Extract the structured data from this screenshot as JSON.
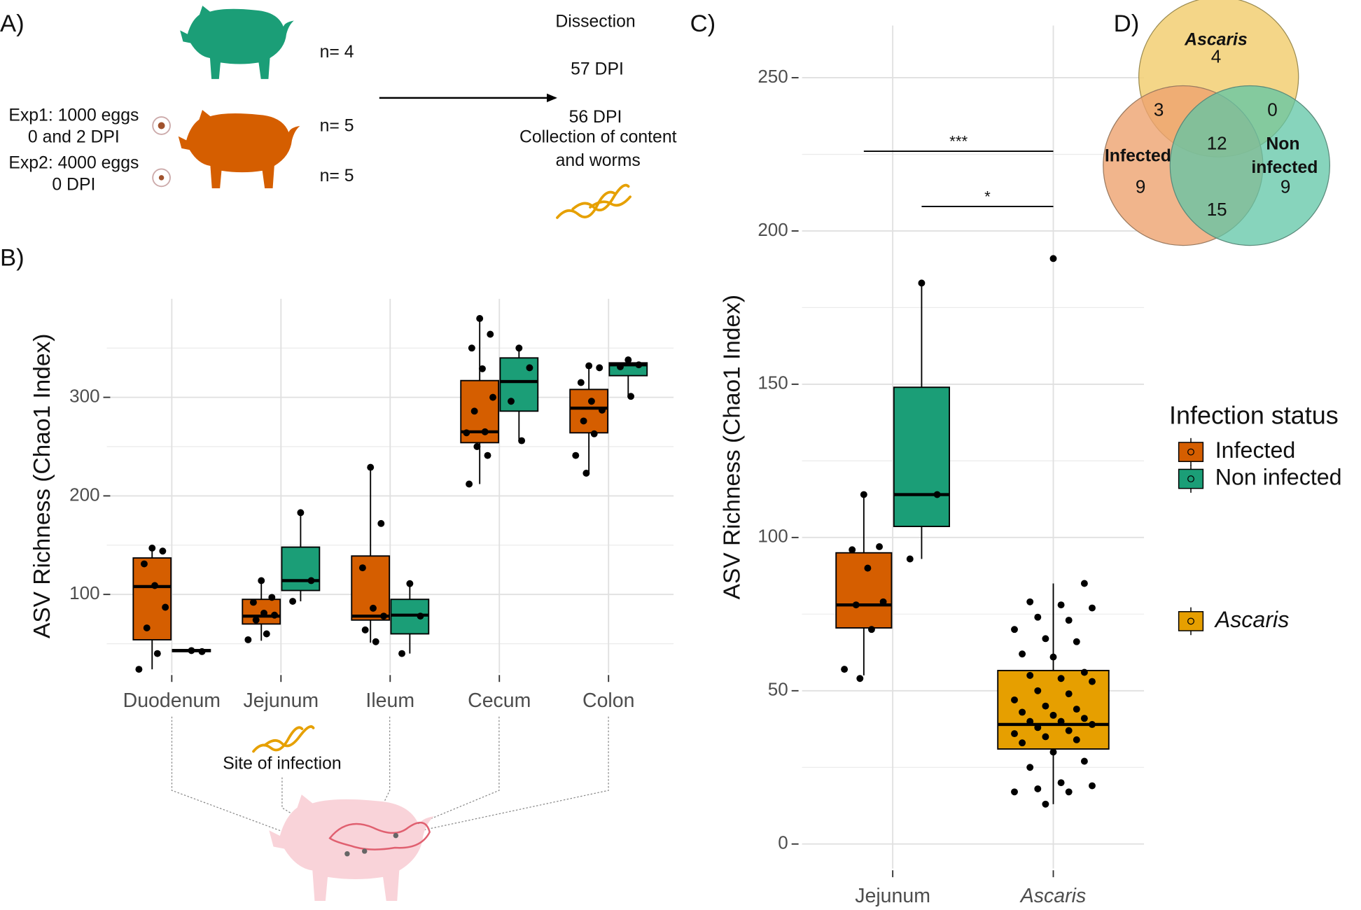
{
  "panel_a": {
    "label": "A)",
    "non_infected_n": "n= 4",
    "exp1": [
      "Exp1: 1000 eggs",
      "0 and 2 DPI"
    ],
    "exp1_n": "n= 5",
    "exp2": [
      "Exp2: 4000 eggs",
      "0 DPI"
    ],
    "exp2_n": "n= 5",
    "dissection": "Dissection",
    "dpi": [
      "57 DPI",
      "56 DPI"
    ],
    "collection": [
      "Collection of content",
      "and worms"
    ]
  },
  "panel_b": {
    "label": "B)",
    "site_note": "Site of infection"
  },
  "panel_c": {
    "label": "C)"
  },
  "panel_d": {
    "label": "D)"
  },
  "venn": {
    "labels": {
      "ascaris": "Ascaris",
      "infected": "Infected",
      "non_infected": [
        "Non",
        "infected"
      ]
    },
    "counts": {
      "ascaris_only": 4,
      "infected_ascaris": 3,
      "ascaris_non": 0,
      "all": 12,
      "infected_only": 9,
      "non_only": 9,
      "infected_non": 15
    }
  },
  "chart_data": [
    {
      "type": "box",
      "ylabel": "ASV Richness (Chao1 Index)",
      "categories": [
        "Duodenum",
        "Jejunum",
        "Ileum",
        "Cecum",
        "Colon"
      ],
      "ylim": [
        20,
        400
      ],
      "yticks": [
        100,
        200,
        300
      ],
      "grid": true,
      "series": [
        {
          "color": "#d55e00",
          "boxes": [
            {
              "min": 24,
              "q1": 54,
              "median": 108,
              "q3": 137,
              "max": 147,
              "points": [
                147,
                144,
                131,
                109,
                87,
                66,
                40,
                24
              ]
            },
            {
              "min": 53,
              "q1": 70,
              "median": 78,
              "q3": 95,
              "max": 114,
              "points": [
                114,
                97,
                92,
                81,
                79,
                74,
                60,
                54
              ]
            },
            {
              "min": 51,
              "q1": 74,
              "median": 78,
              "q3": 139,
              "max": 229,
              "points": [
                229,
                172,
                127,
                86,
                78,
                64,
                52
              ]
            },
            {
              "min": 212,
              "q1": 254,
              "median": 265,
              "q3": 317,
              "max": 380,
              "points": [
                380,
                364,
                350,
                329,
                300,
                286,
                265,
                264,
                250,
                241,
                212
              ]
            },
            {
              "min": 223,
              "q1": 264,
              "median": 289,
              "q3": 308,
              "max": 332,
              "points": [
                332,
                330,
                315,
                296,
                287,
                276,
                263,
                241,
                223
              ]
            }
          ]
        },
        {
          "color": "#1b9e77",
          "boxes": [
            {
              "min": 42,
              "q1": 42,
              "median": 43,
              "q3": 44,
              "max": 44,
              "points": [
                43,
                42
              ]
            },
            {
              "min": 93,
              "q1": 104,
              "median": 114,
              "q3": 148,
              "max": 183,
              "points": [
                183,
                114,
                93
              ]
            },
            {
              "min": 40,
              "q1": 60,
              "median": 79,
              "q3": 95,
              "max": 111,
              "points": [
                111,
                78,
                40
              ]
            },
            {
              "min": 256,
              "q1": 286,
              "median": 316,
              "q3": 340,
              "max": 350,
              "points": [
                350,
                330,
                296,
                256
              ]
            },
            {
              "min": 301,
              "q1": 322,
              "median": 333,
              "q3": 335,
              "max": 338,
              "points": [
                338,
                333,
                331,
                301
              ]
            }
          ]
        }
      ]
    },
    {
      "type": "box",
      "ylabel": "ASV Richness (Chao1 Index)",
      "categories": [
        "Jejunum",
        "Ascaris"
      ],
      "ylim": [
        -8,
        267
      ],
      "yticks": [
        0,
        50,
        100,
        150,
        200,
        250
      ],
      "grid": true,
      "legend_title": "Infection status",
      "series": [
        {
          "name": "Infected",
          "color": "#d55e00",
          "boxes": [
            {
              "min": 55,
              "q1": 70.5,
              "median": 78,
              "q3": 95,
              "max": 114,
              "points": [
                114,
                97,
                96,
                90,
                79,
                78,
                70,
                57,
                54
              ]
            },
            null
          ]
        },
        {
          "name": "Non infected",
          "color": "#1b9e77",
          "boxes": [
            {
              "min": 93,
              "q1": 103.6,
              "median": 114,
              "q3": 149,
              "max": 183,
              "points": [
                183,
                114,
                93
              ]
            },
            null
          ]
        },
        {
          "name": "Ascaris",
          "color": "#e69f00",
          "boxes": [
            null,
            {
              "min": 13,
              "q1": 31,
              "median": 39,
              "q3": 56.6,
              "max": 85,
              "points": [
                191,
                85,
                79,
                78,
                77,
                74,
                73,
                70,
                67,
                66,
                62,
                61,
                56,
                55,
                54,
                53,
                50,
                49,
                47,
                45,
                44,
                43,
                42,
                41,
                40,
                40,
                39,
                38,
                37,
                36,
                35,
                34,
                33,
                30,
                27,
                25,
                20,
                19,
                18,
                17,
                17,
                13
              ]
            }
          ]
        }
      ],
      "annotations": [
        {
          "label": "***",
          "y": 226
        },
        {
          "label": "*",
          "y": 208
        }
      ]
    }
  ]
}
